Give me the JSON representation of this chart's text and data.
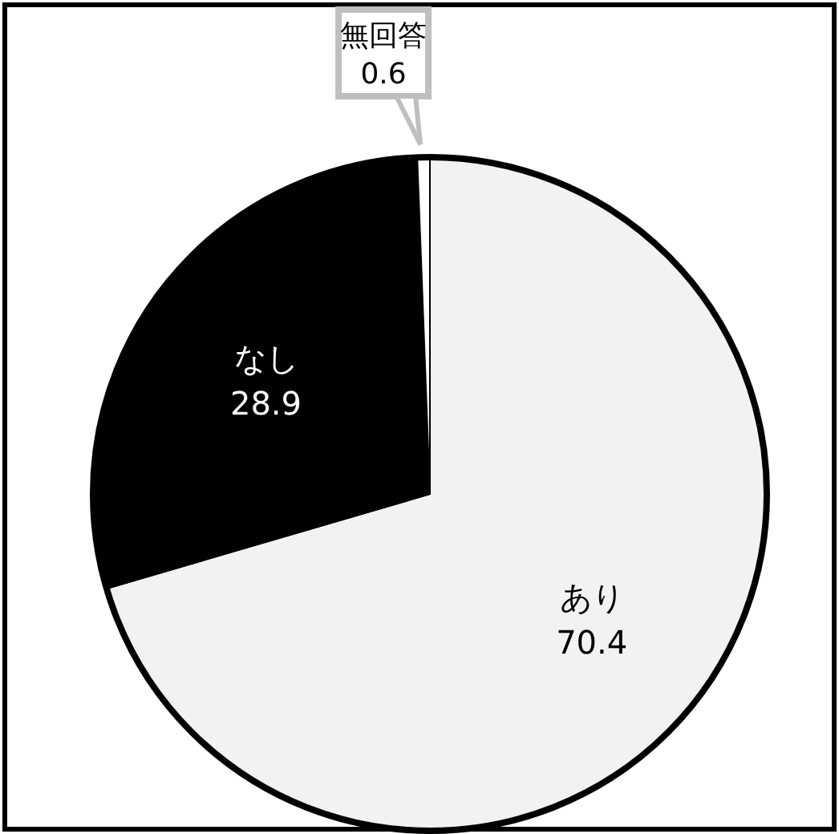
{
  "chart_data": {
    "type": "pie",
    "categories": [
      "あり",
      "なし",
      "無回答"
    ],
    "values": [
      70.4,
      28.9,
      0.6
    ],
    "colors": [
      "#f2f2f2",
      "#000000",
      "#ffffff"
    ],
    "data_labels": true,
    "legend": false
  }
}
